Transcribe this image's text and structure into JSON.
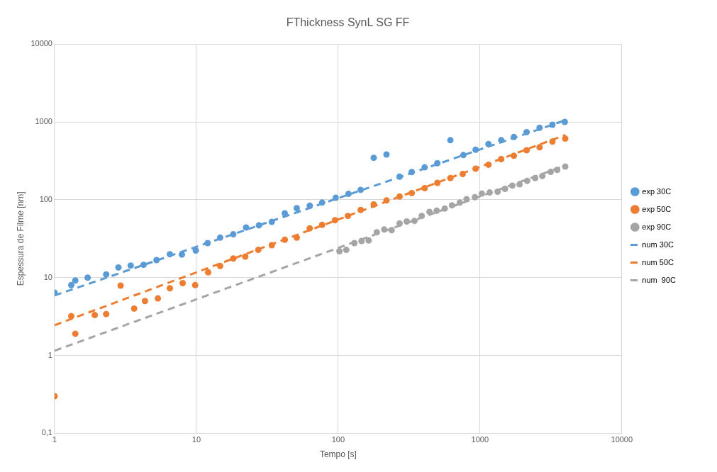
{
  "chart_data": {
    "type": "scatter",
    "title": "FThickness SynL SG FF",
    "xlabel": "Tempo [s]",
    "ylabel": "Espessura de Filme [nm]",
    "log": "xy",
    "grid": true,
    "legend": "right",
    "xlim": [
      1,
      10000
    ],
    "xticks": [
      1,
      10,
      100,
      1000,
      10000
    ],
    "ylim": [
      0.1,
      10000
    ],
    "yticks": [
      {
        "value": 0.1,
        "label": "0,1"
      },
      1,
      10,
      100,
      1000,
      10000
    ],
    "series": [
      {
        "name": "exp 30C",
        "type": "scatter",
        "marker": "circle",
        "color": "#5b9bd5",
        "x": [
          1,
          1.31,
          1.4,
          1.71,
          2.31,
          2.82,
          3.44,
          4.24,
          5.23,
          6.5,
          7.9,
          9.9,
          12,
          14.7,
          18.2,
          22.4,
          27.6,
          34,
          42,
          51,
          63,
          77,
          96,
          118,
          144,
          178,
          219,
          271,
          330,
          407,
          500,
          618,
          763,
          931,
          1147,
          1410,
          1732,
          2131,
          2630,
          3240,
          3960
        ],
        "values": [
          6.4,
          8,
          9.2,
          10,
          11,
          13.5,
          14.3,
          14.6,
          16.8,
          20,
          19.8,
          22.3,
          27.8,
          32.6,
          36,
          44,
          47,
          52,
          67,
          78,
          84,
          92,
          106,
          119,
          134,
          346,
          382,
          198,
          227,
          261,
          295,
          582,
          375,
          440,
          520,
          582,
          640,
          740,
          840,
          920,
          1000
        ]
      },
      {
        "name": "exp 50C",
        "type": "scatter",
        "marker": "circle",
        "color": "#ed7d31",
        "x": [
          1,
          1.31,
          1.4,
          1.92,
          2.31,
          2.92,
          3.64,
          4.34,
          5.35,
          6.5,
          8,
          9.8,
          12.1,
          14.7,
          18.2,
          22.1,
          27.3,
          34,
          42,
          51,
          63,
          77,
          95,
          117,
          144,
          178,
          219,
          271,
          330,
          407,
          500,
          618,
          755,
          931,
          1147,
          1410,
          1732,
          2131,
          2630,
          3240,
          3990
        ],
        "values": [
          0.3,
          3.2,
          1.9,
          3.3,
          3.4,
          7.9,
          4,
          5,
          5.4,
          7.3,
          8.5,
          8,
          11.7,
          14.1,
          17.6,
          18.6,
          22.7,
          26.1,
          30.7,
          32.6,
          43,
          47.6,
          54.7,
          62,
          74,
          87,
          98,
          110,
          122,
          141,
          165,
          190,
          214,
          251,
          282,
          333,
          367,
          433,
          473,
          558,
          610
        ]
      },
      {
        "name": "exp 90C",
        "type": "scatter",
        "marker": "circle",
        "color": "#a5a5a5",
        "x": [
          102,
          114,
          130,
          146,
          164,
          187,
          211,
          238,
          271,
          304,
          345,
          388,
          440,
          495,
          564,
          634,
          720,
          804,
          920,
          1030,
          1170,
          1330,
          1500,
          1690,
          1900,
          2150,
          2450,
          2750,
          3150,
          3500,
          3990
        ],
        "values": [
          21.8,
          22.7,
          27.8,
          29.5,
          30,
          38.2,
          41.5,
          40.7,
          49.6,
          52.6,
          53.6,
          62,
          70,
          72.5,
          77,
          85,
          92,
          102,
          108,
          120,
          124,
          127,
          138,
          152,
          158,
          175,
          190,
          202,
          228,
          242,
          267
        ]
      },
      {
        "name": "num 30C",
        "type": "line",
        "marker": "none",
        "line_style": "dashed",
        "color": "#5b9bd5",
        "x": [
          1,
          3990
        ],
        "values": [
          5.9,
          1050
        ]
      },
      {
        "name": "num 50C",
        "type": "line",
        "marker": "none",
        "line_style": "dashed",
        "color": "#ed7d31",
        "x": [
          1,
          3990
        ],
        "values": [
          2.45,
          680
        ]
      },
      {
        "name": "num  90C",
        "type": "line",
        "marker": "none",
        "line_style": "dashed",
        "color": "#a5a5a5",
        "x": [
          1,
          3990
        ],
        "values": [
          1.15,
          275
        ]
      }
    ]
  }
}
